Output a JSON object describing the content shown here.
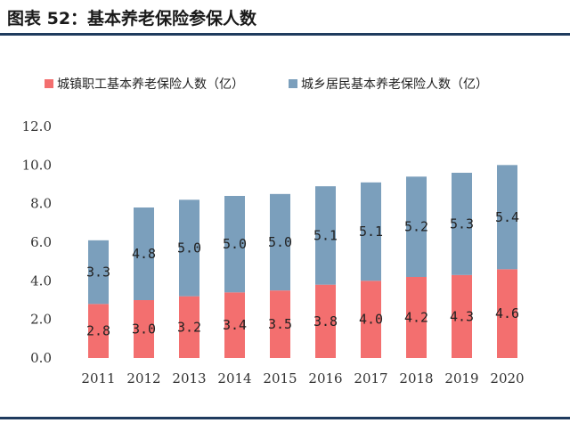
{
  "title": "图表 52：基本养老保险参保人数",
  "colors": {
    "urban": "#f36f6f",
    "rural": "#7b9fbc",
    "rule": "#1f3b5e"
  },
  "chart_data": {
    "type": "bar",
    "stacked": true,
    "title": "",
    "categories": [
      "2011",
      "2012",
      "2013",
      "2014",
      "2015",
      "2016",
      "2017",
      "2018",
      "2019",
      "2020"
    ],
    "series": [
      {
        "name": "城镇职工基本养老保险人数（亿）",
        "values": [
          2.8,
          3.0,
          3.2,
          3.4,
          3.5,
          3.8,
          4.0,
          4.2,
          4.3,
          4.6
        ],
        "labels": [
          "2.8",
          "3.0",
          "3.2",
          "3.4",
          "3.5",
          "3.8",
          "4.0",
          "4.2",
          "4.3",
          "4.6"
        ]
      },
      {
        "name": "城乡居民基本养老保险人数（亿）",
        "values": [
          3.3,
          4.8,
          5.0,
          5.0,
          5.0,
          5.1,
          5.1,
          5.2,
          5.3,
          5.4
        ],
        "labels": [
          "3.3",
          "4.8",
          "5.0",
          "5.0",
          "5.0",
          "5.1",
          "5.1",
          "5.2",
          "5.3",
          "5.4"
        ]
      }
    ],
    "ylim": [
      0,
      12
    ],
    "yticks": [
      "0.0",
      "2.0",
      "4.0",
      "6.0",
      "8.0",
      "10.0",
      "12.0"
    ],
    "grid": false,
    "legend": "top-left"
  }
}
